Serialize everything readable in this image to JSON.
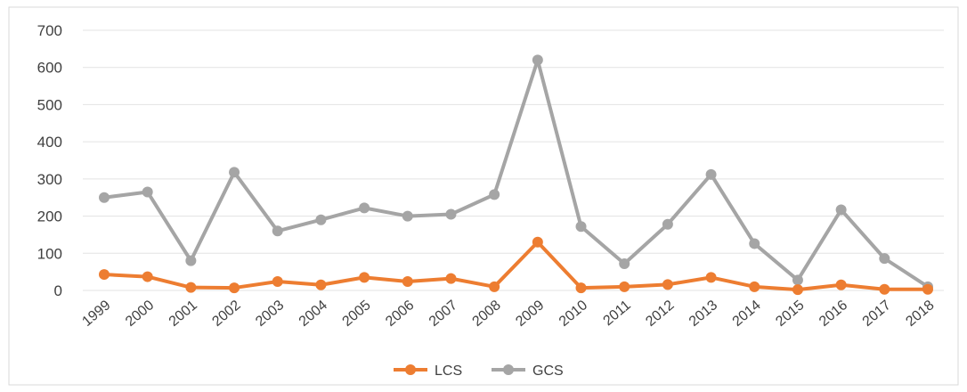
{
  "chart_data": {
    "type": "line",
    "title": "",
    "xlabel": "",
    "ylabel": "",
    "ylim": [
      0,
      700
    ],
    "yticks": [
      0,
      100,
      200,
      300,
      400,
      500,
      600,
      700
    ],
    "grid": "horizontal",
    "legend_position": "bottom",
    "categories": [
      "1999",
      "2000",
      "2001",
      "2002",
      "2003",
      "2004",
      "2005",
      "2006",
      "2007",
      "2008",
      "2009",
      "2010",
      "2011",
      "2012",
      "2013",
      "2014",
      "2015",
      "2016",
      "2017",
      "2018"
    ],
    "series": [
      {
        "name": "LCS",
        "color": "#ED7D31",
        "values": [
          43,
          37,
          8,
          7,
          24,
          15,
          35,
          24,
          32,
          10,
          130,
          7,
          10,
          16,
          35,
          10,
          2,
          15,
          3,
          3
        ]
      },
      {
        "name": "GCS",
        "color": "#A5A5A5",
        "values": [
          250,
          265,
          80,
          318,
          160,
          190,
          222,
          200,
          205,
          258,
          620,
          172,
          72,
          178,
          312,
          126,
          28,
          217,
          86,
          10
        ]
      }
    ]
  }
}
